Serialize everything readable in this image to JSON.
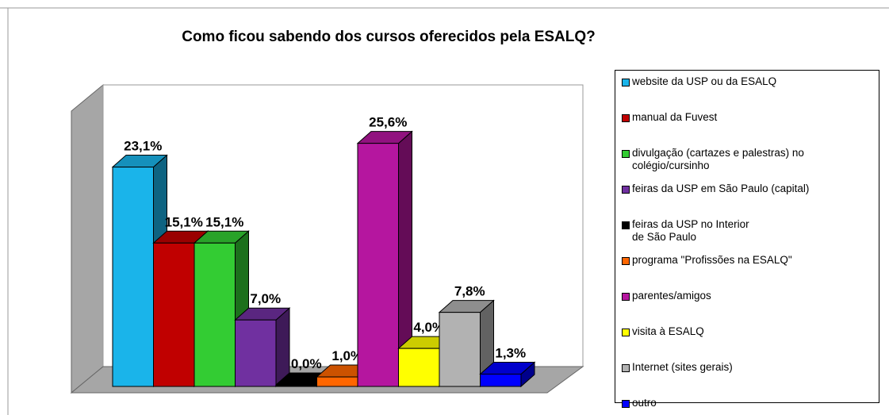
{
  "chart_data": {
    "type": "bar3d",
    "title": "Como ficou sabendo dos cursos oferecidos pela ESALQ?",
    "series": [
      {
        "name": "website da USP ou da ESALQ",
        "color": "#1ab4ea",
        "values": [
          23.1
        ],
        "value_labels": [
          "23,1%"
        ]
      },
      {
        "name": "manual da Fuvest",
        "color": "#c00000",
        "values": [
          15.1
        ],
        "value_labels": [
          "15,1%"
        ]
      },
      {
        "name": "divulgação (cartazes e palestras) no\ncolégio/cursinho",
        "color": "#33cc33",
        "values": [
          15.1
        ],
        "value_labels": [
          "15,1%"
        ]
      },
      {
        "name": "feiras da USP em São Paulo (capital)",
        "color": "#7030a0",
        "values": [
          7.0
        ],
        "value_labels": [
          "7,0%"
        ]
      },
      {
        "name": "feiras da USP no Interior\nde São Paulo",
        "color": "#000000",
        "values": [
          0.0
        ],
        "value_labels": [
          "0,0%"
        ]
      },
      {
        "name": "programa \"Profissões na ESALQ\"",
        "color": "#ff6600",
        "values": [
          1.0
        ],
        "value_labels": [
          "1,0%"
        ]
      },
      {
        "name": "parentes/amigos",
        "color": "#b5169f",
        "values": [
          25.6
        ],
        "value_labels": [
          "25,6%"
        ]
      },
      {
        "name": "visita à ESALQ",
        "color": "#ffff00",
        "values": [
          4.0
        ],
        "value_labels": [
          "4,0%"
        ]
      },
      {
        "name": "Internet (sites gerais)",
        "color": "#b2b2b2",
        "values": [
          7.8
        ],
        "value_labels": [
          "7,8%"
        ]
      },
      {
        "name": "outro",
        "color": "#0000ff",
        "values": [
          1.3
        ],
        "value_labels": [
          "1,3%"
        ]
      }
    ]
  }
}
